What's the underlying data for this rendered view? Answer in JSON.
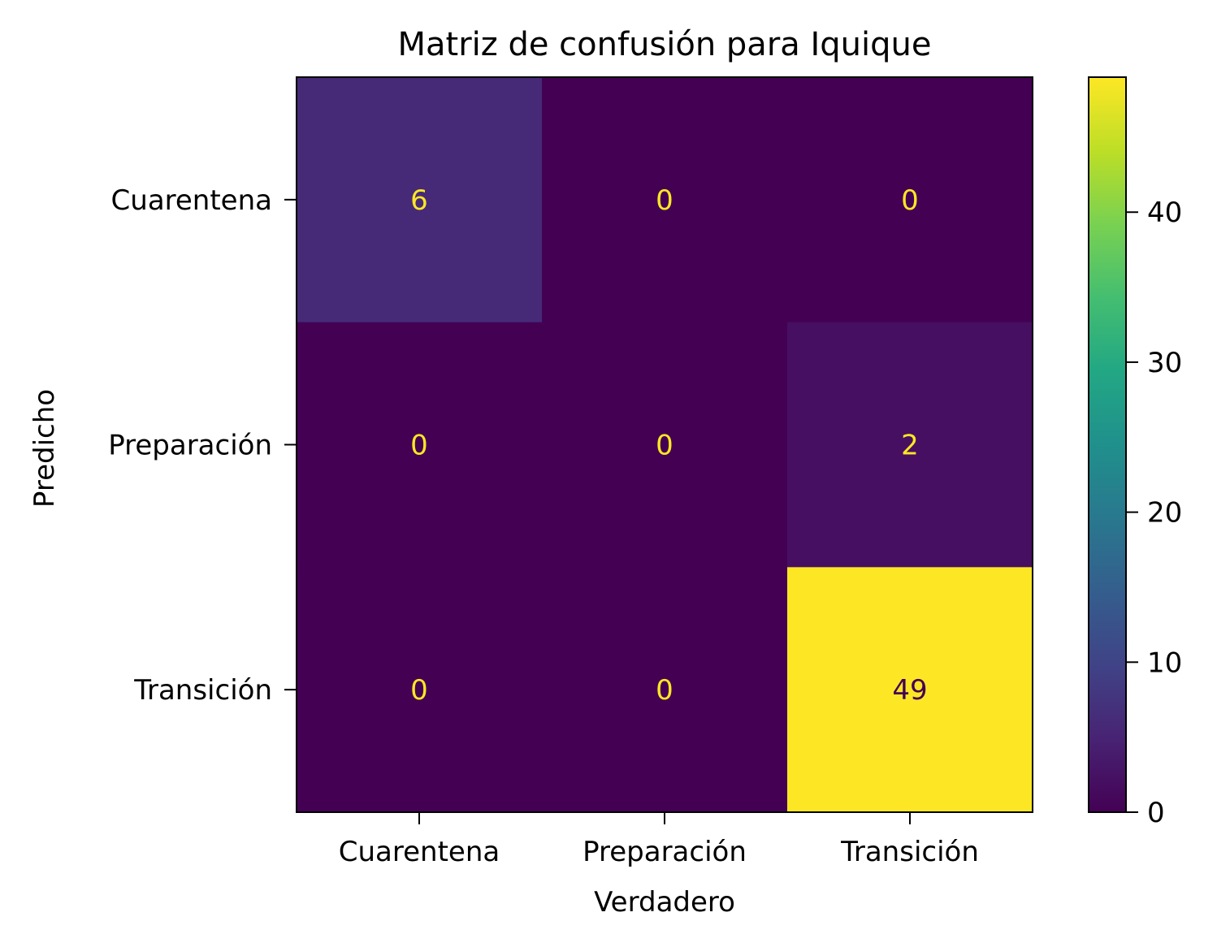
{
  "chart_data": {
    "type": "heatmap",
    "title": "Matriz de confusión para Iquique",
    "xlabel": "Verdadero",
    "ylabel": "Predicho",
    "x_categories": [
      "Cuarentena",
      "Preparación",
      "Transición"
    ],
    "y_categories": [
      "Cuarentena",
      "Preparación",
      "Transición"
    ],
    "values": [
      [
        6,
        0,
        0
      ],
      [
        0,
        0,
        2
      ],
      [
        0,
        0,
        49
      ]
    ],
    "colormap": "viridis",
    "colorbar": {
      "min": 0,
      "max": 49,
      "ticks": [
        0,
        10,
        20,
        30,
        40
      ]
    },
    "annotation_colors": {
      "on_dark": "#fde725",
      "on_light": "#440154"
    }
  }
}
